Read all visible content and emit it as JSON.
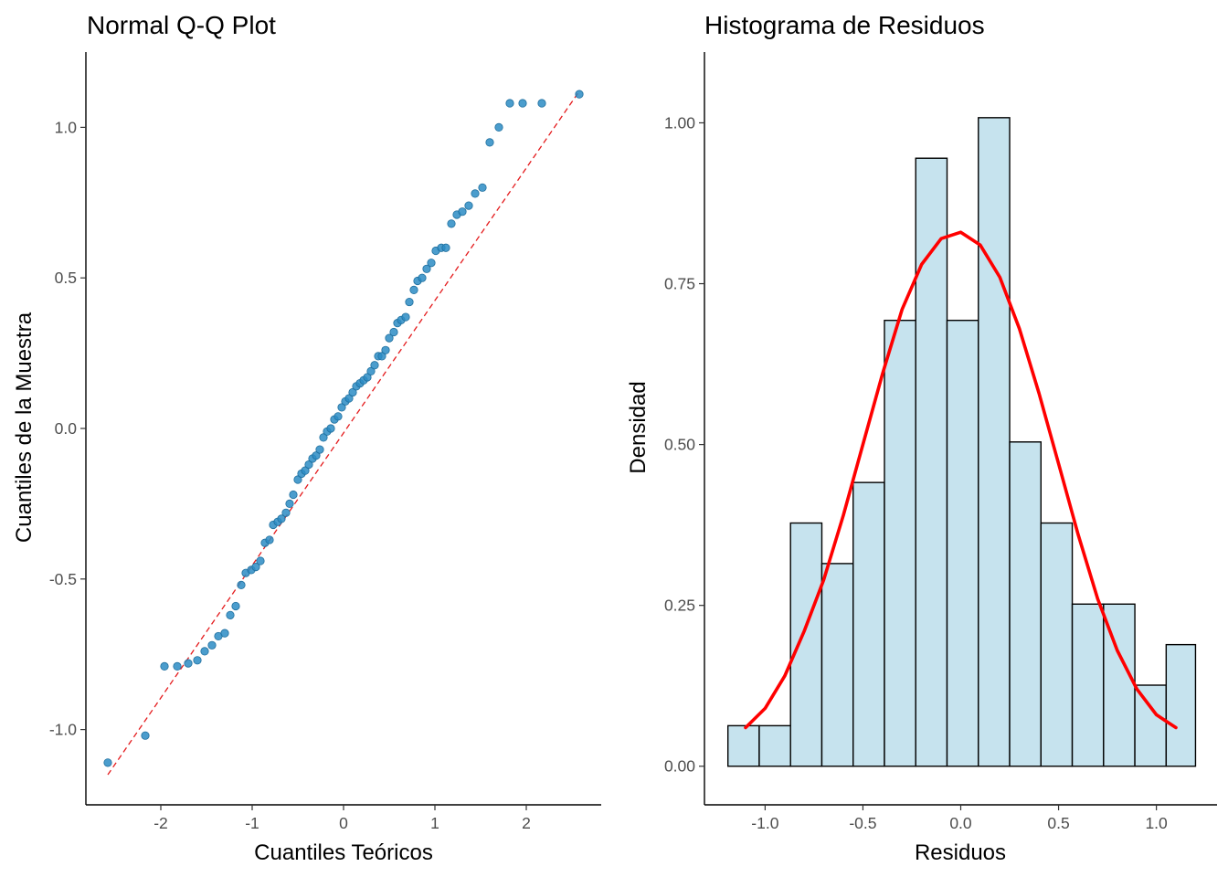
{
  "chart_data": [
    {
      "type": "scatter",
      "title": "Normal Q-Q Plot",
      "xlabel": "Cuantiles Teóricos",
      "ylabel": "Cuantiles de la Muestra",
      "xlim": [
        -2.82,
        2.82
      ],
      "ylim": [
        -1.25,
        1.25
      ],
      "xticks": [
        -2,
        -1,
        0,
        1,
        2
      ],
      "xtick_labels": [
        "-2",
        "-1",
        "0",
        "1",
        "2"
      ],
      "yticks": [
        -1.0,
        -0.5,
        0.0,
        0.5,
        1.0
      ],
      "ytick_labels": [
        "-1.0",
        "-0.5",
        "0.0",
        "0.5",
        "1.0"
      ],
      "grid": false,
      "point_color": "#2b8cc4",
      "reference_line": {
        "x": [
          -2.58,
          2.58
        ],
        "y": [
          -1.15,
          1.12
        ],
        "color": "#e41a1c",
        "style": "dashed"
      },
      "x": [
        -2.58,
        -2.17,
        -1.96,
        -1.82,
        -1.7,
        -1.6,
        -1.52,
        -1.44,
        -1.37,
        -1.3,
        -1.24,
        -1.18,
        -1.12,
        -1.07,
        -1.01,
        -0.96,
        -0.91,
        -0.86,
        -0.81,
        -0.77,
        -0.72,
        -0.68,
        -0.63,
        -0.59,
        -0.55,
        -0.5,
        -0.46,
        -0.42,
        -0.38,
        -0.34,
        -0.3,
        -0.26,
        -0.22,
        -0.18,
        -0.14,
        -0.1,
        -0.06,
        -0.02,
        0.02,
        0.06,
        0.1,
        0.14,
        0.18,
        0.22,
        0.26,
        0.3,
        0.34,
        0.38,
        0.42,
        0.46,
        0.5,
        0.55,
        0.59,
        0.63,
        0.68,
        0.72,
        0.77,
        0.81,
        0.86,
        0.91,
        0.96,
        1.01,
        1.07,
        1.12,
        1.18,
        1.24,
        1.3,
        1.37,
        1.44,
        1.52,
        1.6,
        1.7,
        1.82,
        1.96,
        2.17,
        2.58
      ],
      "y": [
        -1.11,
        -1.02,
        -0.79,
        -0.79,
        -0.78,
        -0.77,
        -0.74,
        -0.72,
        -0.69,
        -0.68,
        -0.62,
        -0.59,
        -0.52,
        -0.48,
        -0.47,
        -0.46,
        -0.44,
        -0.38,
        -0.37,
        -0.32,
        -0.31,
        -0.3,
        -0.28,
        -0.25,
        -0.22,
        -0.17,
        -0.15,
        -0.14,
        -0.12,
        -0.1,
        -0.09,
        -0.07,
        -0.03,
        -0.01,
        0.0,
        0.03,
        0.04,
        0.07,
        0.09,
        0.1,
        0.12,
        0.14,
        0.15,
        0.16,
        0.17,
        0.19,
        0.21,
        0.24,
        0.24,
        0.26,
        0.3,
        0.32,
        0.35,
        0.36,
        0.37,
        0.42,
        0.46,
        0.49,
        0.5,
        0.53,
        0.55,
        0.59,
        0.6,
        0.6,
        0.68,
        0.71,
        0.72,
        0.74,
        0.78,
        0.8,
        0.95,
        1.0,
        1.08,
        1.08,
        1.08,
        1.11
      ]
    },
    {
      "type": "bar",
      "title": "Histograma de Residuos",
      "xlabel": "Residuos",
      "ylabel": "Densidad",
      "xlim": [
        -1.31,
        1.31
      ],
      "ylim": [
        -0.06,
        1.11
      ],
      "xticks": [
        -1.0,
        -0.5,
        0.0,
        0.5,
        1.0
      ],
      "xtick_labels": [
        "-1.0",
        "-0.5",
        "0.0",
        "0.5",
        "1.0"
      ],
      "yticks": [
        0.0,
        0.25,
        0.5,
        0.75,
        1.0
      ],
      "ytick_labels": [
        "0.00",
        "0.25",
        "0.50",
        "0.75",
        "1.00"
      ],
      "grid": false,
      "bar_color": "#c6e3ee",
      "bin_edges": [
        -1.19,
        -1.03,
        -0.87,
        -0.71,
        -0.55,
        -0.39,
        -0.23,
        -0.07,
        0.09,
        0.25,
        0.41,
        0.57,
        0.73,
        0.89,
        1.05,
        1.2
      ],
      "values": [
        0.063,
        0.063,
        0.378,
        0.315,
        0.441,
        0.693,
        0.945,
        0.693,
        1.008,
        0.504,
        0.378,
        0.252,
        0.252,
        0.126,
        0.189
      ],
      "density_curve": {
        "color": "#ff0000",
        "x": [
          -1.1,
          -1.0,
          -0.9,
          -0.8,
          -0.7,
          -0.6,
          -0.5,
          -0.4,
          -0.3,
          -0.2,
          -0.1,
          0.0,
          0.1,
          0.2,
          0.3,
          0.4,
          0.5,
          0.6,
          0.7,
          0.8,
          0.9,
          1.0,
          1.1
        ],
        "y": [
          0.06,
          0.09,
          0.14,
          0.21,
          0.29,
          0.39,
          0.5,
          0.61,
          0.71,
          0.78,
          0.82,
          0.83,
          0.81,
          0.76,
          0.68,
          0.58,
          0.47,
          0.36,
          0.26,
          0.18,
          0.12,
          0.08,
          0.06
        ]
      }
    }
  ]
}
